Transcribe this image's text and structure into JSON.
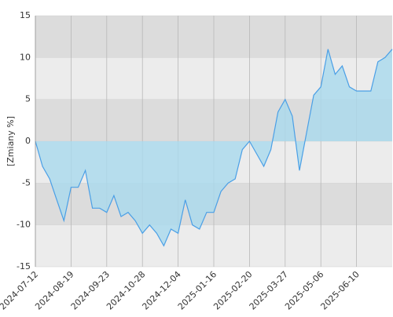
{
  "chart_data": {
    "type": "line",
    "y_label": "[Zmiany %]",
    "categories": [
      "2024-07-12",
      null,
      null,
      null,
      null,
      "2024-08-19",
      null,
      null,
      null,
      null,
      "2024-09-23",
      null,
      null,
      null,
      null,
      "2024-10-28",
      null,
      null,
      null,
      null,
      "2024-12-04",
      null,
      null,
      null,
      null,
      "2025-01-16",
      null,
      null,
      null,
      null,
      "2025-02-20",
      null,
      null,
      null,
      null,
      "2025-03-27",
      null,
      null,
      null,
      null,
      "2025-05-06",
      null,
      null,
      null,
      null,
      "2025-06-10",
      null,
      null,
      null,
      null,
      null
    ],
    "values": [
      0,
      -3,
      -4.5,
      -7,
      -9.5,
      -5.5,
      -5.5,
      -3.5,
      -8,
      -8,
      -8.5,
      -6.5,
      -9,
      -8.5,
      -9.5,
      -11,
      -10,
      -11,
      -12.5,
      -10.5,
      -11,
      -7,
      -10,
      -10.5,
      -8.5,
      -8.5,
      -6,
      -5,
      -4.5,
      -1,
      0,
      -1.5,
      -3,
      -1,
      3.5,
      5,
      3,
      -3.5,
      1,
      5.5,
      6.5,
      11,
      8,
      9,
      6.5,
      6,
      6,
      6,
      9.5,
      10,
      11
    ],
    "color": "#4a9fe6",
    "fill": "#a9d9ee",
    "ylim": [
      -15,
      15
    ],
    "yticks": [
      -15,
      -10,
      -5,
      0,
      5,
      10,
      15
    ],
    "grid": true
  }
}
